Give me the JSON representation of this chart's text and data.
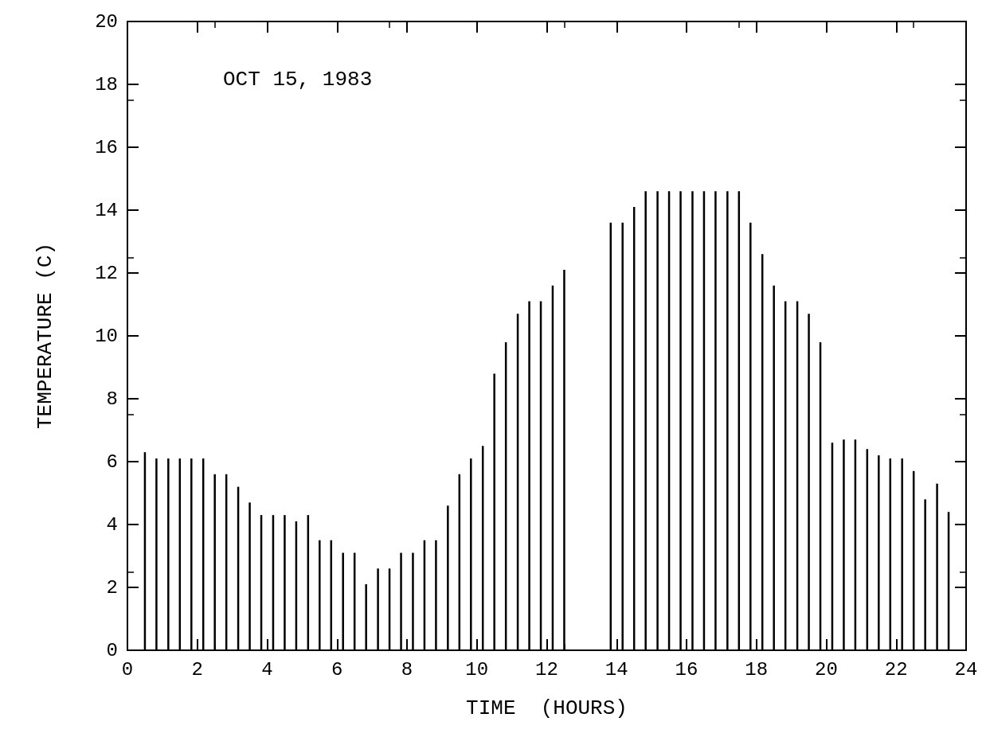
{
  "chart_data": {
    "type": "bar",
    "xlabel": "TIME  (HOURS)",
    "ylabel": "TEMPERATURE (C)",
    "annotations": [
      "OCT 15, 1983"
    ],
    "x": [
      0.5,
      0.83,
      1.17,
      1.5,
      1.83,
      2.17,
      2.5,
      2.83,
      3.17,
      3.5,
      3.83,
      4.17,
      4.5,
      4.83,
      5.17,
      5.5,
      5.83,
      6.17,
      6.5,
      6.83,
      7.17,
      7.5,
      7.83,
      8.17,
      8.5,
      8.83,
      9.17,
      9.5,
      9.83,
      10.17,
      10.5,
      10.83,
      11.17,
      11.5,
      11.83,
      12.17,
      12.5,
      13.83,
      14.17,
      14.5,
      14.83,
      15.17,
      15.5,
      15.83,
      16.17,
      16.5,
      16.83,
      17.17,
      17.5,
      17.83,
      18.17,
      18.5,
      18.83,
      19.17,
      19.5,
      19.83,
      20.17,
      20.5,
      20.83,
      21.17,
      21.5,
      21.83,
      22.17,
      22.5,
      22.83,
      23.17,
      23.5
    ],
    "series": [
      {
        "color": "#000000",
        "values": [
          6.3,
          6.1,
          6.1,
          6.1,
          6.1,
          6.1,
          5.6,
          5.6,
          5.2,
          4.7,
          4.3,
          4.3,
          4.3,
          4.1,
          4.3,
          3.5,
          3.5,
          3.1,
          3.1,
          2.1,
          2.6,
          2.6,
          3.1,
          3.1,
          3.5,
          3.5,
          4.6,
          5.6,
          6.1,
          6.5,
          8.8,
          9.8,
          10.7,
          11.1,
          11.1,
          11.6,
          12.1,
          13.6,
          13.6,
          14.1,
          14.6,
          14.6,
          14.6,
          14.6,
          14.6,
          14.6,
          14.6,
          14.6,
          14.6,
          13.6,
          12.6,
          11.6,
          11.1,
          11.1,
          10.7,
          9.8,
          6.6,
          6.7,
          6.7,
          6.4,
          6.2,
          6.1,
          6.1,
          5.7,
          4.8,
          5.3,
          4.4
        ]
      }
    ],
    "xlim": [
      0,
      24
    ],
    "xticks": [
      0,
      2,
      4,
      6,
      8,
      10,
      12,
      14,
      16,
      18,
      20,
      22,
      24
    ],
    "ylim": [
      0,
      20
    ],
    "yticks": [
      0,
      2,
      4,
      6,
      8,
      10,
      12,
      14,
      16,
      18,
      20
    ],
    "grid": false
  }
}
